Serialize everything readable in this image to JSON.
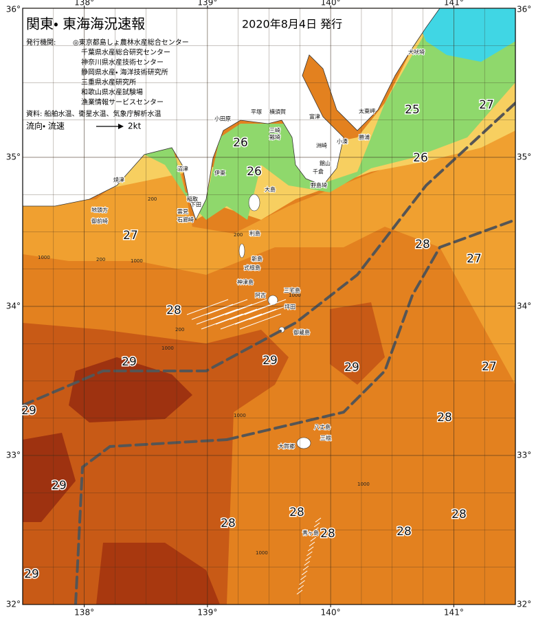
{
  "header": {
    "title": "関東・ 東海海況速報",
    "date": "2020年8月4日 発行"
  },
  "issuers": {
    "label": "発行機関:",
    "names": [
      "◎東京都島しょ農林水産総合センター",
      "千葉県水産総合研究センター",
      "神奈川県水産技術センター",
      "静岡県水産・ 海洋技術研究所",
      "三重県水産研究所",
      "和歌山県水産試験場",
      "漁業情報サービスセンター"
    ]
  },
  "sources": "資料: 船舶水温、衛星水温、気象庁解析水温",
  "legend": {
    "label": "流向・ 流速",
    "speed": "2kt"
  },
  "map": {
    "lonlim": [
      137.5,
      141.5
    ],
    "latlim": [
      32,
      36
    ],
    "lon_ticks": [
      {
        "value": 138,
        "label": "138°"
      },
      {
        "value": 139,
        "label": "139°"
      },
      {
        "value": 140,
        "label": "140°"
      },
      {
        "value": 141,
        "label": "141°"
      }
    ],
    "lat_ticks": [
      {
        "value": 32,
        "label": "32°"
      },
      {
        "value": 33,
        "label": "33°"
      },
      {
        "value": 34,
        "label": "34°"
      },
      {
        "value": 35,
        "label": "35°"
      },
      {
        "value": 36,
        "label": "36°"
      }
    ],
    "temperature_labels": [
      25,
      27,
      26,
      26,
      26,
      27,
      28,
      27,
      28,
      29,
      29,
      29,
      27,
      29,
      28,
      29,
      28,
      28,
      28,
      28,
      29,
      28
    ],
    "depth_labels": [
      1000,
      200,
      200,
      1000,
      200,
      200,
      1000,
      1000,
      1000,
      1000,
      1000
    ],
    "place_names": [
      "犬吠埼",
      "太東岬",
      "勝浦",
      "小湊",
      "館山",
      "千倉",
      "野島埼",
      "富津",
      "横須賀",
      "平塚",
      "小田原",
      "三崎",
      "剱埼",
      "洲崎",
      "伊東",
      "稲取",
      "下田",
      "雲見",
      "石廊崎",
      "沼津",
      "焼津",
      "御前崎",
      "地頭方",
      "大島",
      "利島",
      "新島",
      "式根島",
      "神津島",
      "三宅島",
      "阿古",
      "坪田",
      "御蔵島",
      "八丈島",
      "三根",
      "大賀郷",
      "青ヶ島"
    ]
  }
}
